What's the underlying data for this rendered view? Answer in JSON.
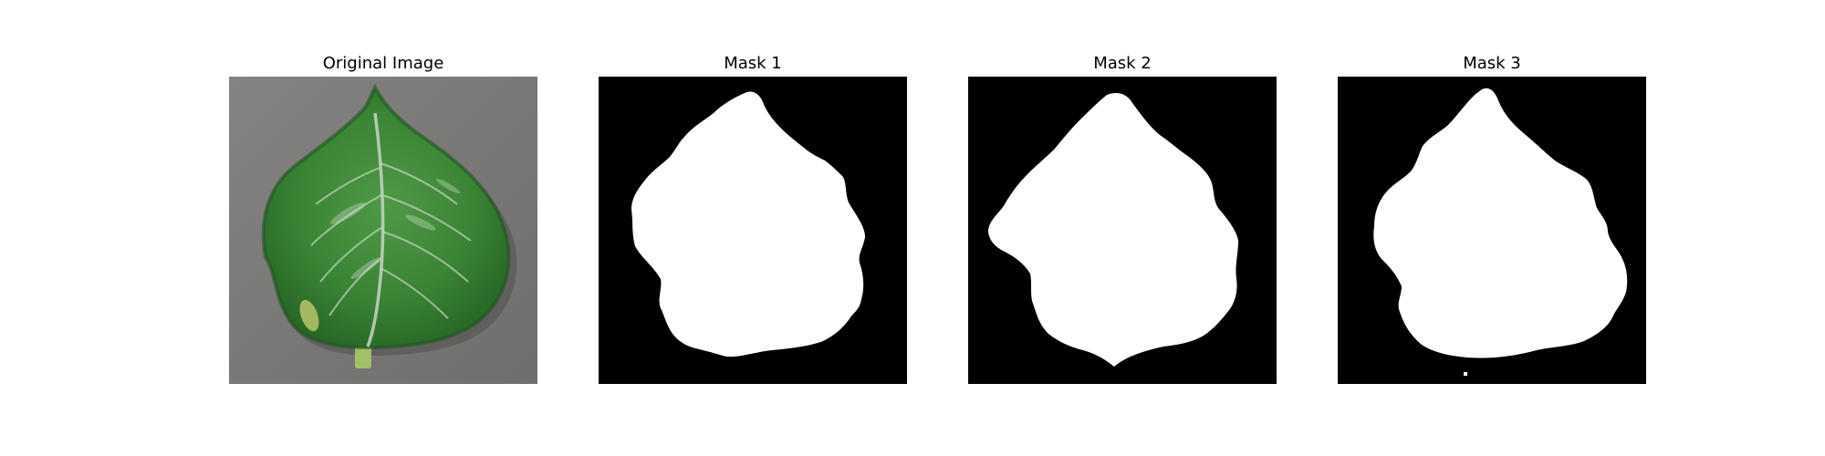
{
  "figure": {
    "panels": [
      {
        "title": "Original Image",
        "kind": "photo"
      },
      {
        "title": "Mask 1",
        "kind": "mask"
      },
      {
        "title": "Mask 2",
        "kind": "mask"
      },
      {
        "title": "Mask 3",
        "kind": "mask"
      }
    ],
    "colors": {
      "background": "#ffffff",
      "mask_background": "#000000",
      "mask_foreground": "#ffffff",
      "photo_background": "#7d7b7a",
      "leaf_dark": "#2a6b2a",
      "leaf_mid": "#3f8a3b",
      "leaf_light": "#5aa552",
      "vein": "#c7d5c4",
      "stem": "#a2c06a"
    }
  }
}
